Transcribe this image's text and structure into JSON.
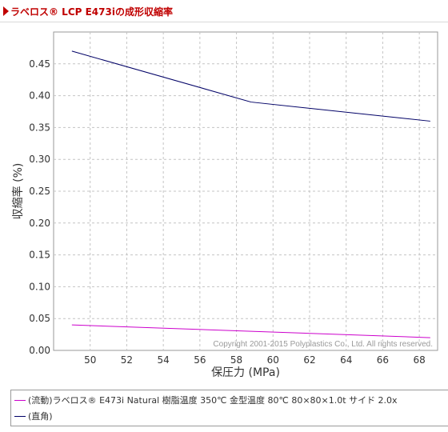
{
  "header": {
    "title": "ラベロス® LCP E473iの成形収縮率"
  },
  "chart_data": {
    "type": "line",
    "xlabel": "保圧力 (MPa)",
    "ylabel": "収縮率 (%)",
    "xlim": [
      48,
      69
    ],
    "ylim": [
      0,
      0.5
    ],
    "x_ticks": [
      "50",
      "52",
      "54",
      "56",
      "58",
      "60",
      "62",
      "64",
      "66",
      "68"
    ],
    "y_ticks": [
      "0.00",
      "0.05",
      "0.10",
      "0.15",
      "0.20",
      "0.25",
      "0.30",
      "0.35",
      "0.40",
      "0.45"
    ],
    "grid": true,
    "legend_position": "bottom",
    "watermark": "Copyright 2001-2015 Polyplastics Co., Ltd. All rights reserved.",
    "series": [
      {
        "name": "(流動)ラベロス® E473i Natural 樹脂温度 350℃ 金型温度 80℃ 80×80×1.0t サイド 2.0x",
        "color": "#cc00cc",
        "x": [
          49,
          58.8,
          68.6
        ],
        "y": [
          0.04,
          0.03,
          0.02
        ]
      },
      {
        "name": "(直角)",
        "color": "#000066",
        "x": [
          49,
          58.8,
          68.6
        ],
        "y": [
          0.47,
          0.39,
          0.36
        ]
      }
    ]
  }
}
